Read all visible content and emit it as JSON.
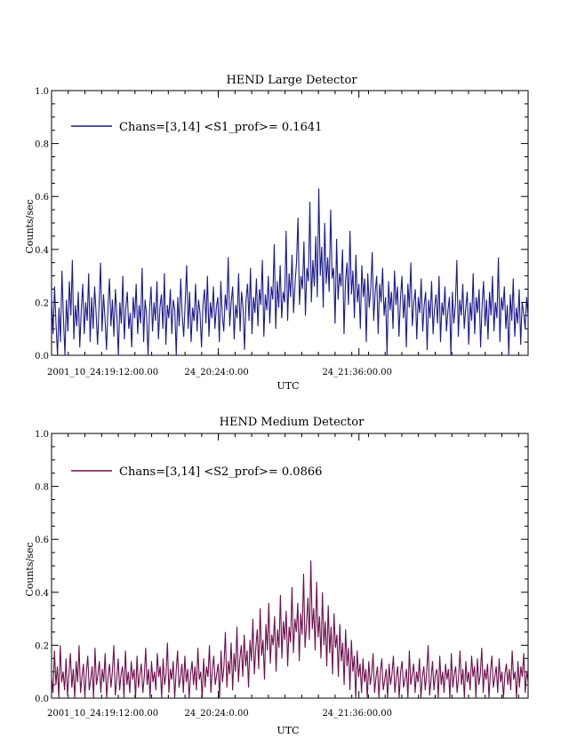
{
  "chart_data": [
    {
      "type": "line",
      "title": "HEND Large Detector",
      "xlabel": "UTC",
      "ylabel": "Counts/sec",
      "ylim": [
        0,
        1.0
      ],
      "yticks": [
        "0.0",
        "0.2",
        "0.4",
        "0.6",
        "0.8",
        "1.0"
      ],
      "xticks": [
        "2001_10_24:19:12:00.00",
        "24_20:24:0.00",
        "24_21:36:00.00"
      ],
      "legend": "Chans=[3,14] <S1_prof>= 0.1641",
      "color": "#1a1a8c",
      "series": [
        {
          "values": [
            0.22,
            0.08,
            0.26,
            0.12,
            0.0,
            0.18,
            0.05,
            0.32,
            0.14,
            0.0,
            0.21,
            0.09,
            0.28,
            0.15,
            0.36,
            0.06,
            0.19,
            0.11,
            0.24,
            0.03,
            0.17,
            0.27,
            0.08,
            0.2,
            0.13,
            0.31,
            0.05,
            0.22,
            0.1,
            0.26,
            0.16,
            0.04,
            0.19,
            0.35,
            0.09,
            0.23,
            0.14,
            0.02,
            0.18,
            0.29,
            0.11,
            0.21,
            0.07,
            0.25,
            0.15,
            0.0,
            0.2,
            0.12,
            0.3,
            0.06,
            0.18,
            0.24,
            0.1,
            0.16,
            0.03,
            0.22,
            0.14,
            0.27,
            0.08,
            0.19,
            0.12,
            0.33,
            0.05,
            0.21,
            0.15,
            0.0,
            0.17,
            0.26,
            0.09,
            0.2,
            0.13,
            0.28,
            0.06,
            0.18,
            0.23,
            0.1,
            0.31,
            0.04,
            0.19,
            0.14,
            0.25,
            0.08,
            0.21,
            0.17,
            0.0,
            0.22,
            0.11,
            0.29,
            0.15,
            0.07,
            0.2,
            0.34,
            0.1,
            0.24,
            0.05,
            0.18,
            0.13,
            0.27,
            0.09,
            0.21,
            0.16,
            0.03,
            0.19,
            0.25,
            0.12,
            0.3,
            0.07,
            0.2,
            0.14,
            0.26,
            0.1,
            0.18,
            0.22,
            0.05,
            0.28,
            0.15,
            0.09,
            0.23,
            0.17,
            0.37,
            0.11,
            0.2,
            0.26,
            0.06,
            0.19,
            0.14,
            0.31,
            0.09,
            0.24,
            0.18,
            0.02,
            0.21,
            0.27,
            0.13,
            0.33,
            0.08,
            0.22,
            0.16,
            0.29,
            0.11,
            0.25,
            0.19,
            0.36,
            0.07,
            0.23,
            0.17,
            0.3,
            0.12,
            0.26,
            0.21,
            0.42,
            0.1,
            0.28,
            0.18,
            0.34,
            0.14,
            0.24,
            0.2,
            0.47,
            0.13,
            0.31,
            0.22,
            0.38,
            0.16,
            0.27,
            0.35,
            0.52,
            0.19,
            0.3,
            0.25,
            0.43,
            0.15,
            0.33,
            0.28,
            0.58,
            0.2,
            0.36,
            0.26,
            0.45,
            0.22,
            0.63,
            0.3,
            0.41,
            0.18,
            0.5,
            0.27,
            0.37,
            0.24,
            0.55,
            0.29,
            0.33,
            0.12,
            0.44,
            0.21,
            0.31,
            0.26,
            0.4,
            0.08,
            0.28,
            0.35,
            0.19,
            0.47,
            0.23,
            0.32,
            0.14,
            0.38,
            0.2,
            0.27,
            0.1,
            0.34,
            0.22,
            0.29,
            0.05,
            0.31,
            0.18,
            0.25,
            0.39,
            0.13,
            0.24,
            0.3,
            0.08,
            0.27,
            0.2,
            0.33,
            0.15,
            0.22,
            0.0,
            0.28,
            0.17,
            0.24,
            0.1,
            0.32,
            0.19,
            0.26,
            0.07,
            0.21,
            0.3,
            0.14,
            0.23,
            0.03,
            0.27,
            0.18,
            0.35,
            0.11,
            0.2,
            0.25,
            0.06,
            0.22,
            0.16,
            0.29,
            0.09,
            0.19,
            0.24,
            0.02,
            0.21,
            0.14,
            0.28,
            0.08,
            0.18,
            0.23,
            0.12,
            0.3,
            0.05,
            0.2,
            0.15,
            0.26,
            0.09,
            0.17,
            0.22,
            0.0,
            0.24,
            0.12,
            0.19,
            0.36,
            0.07,
            0.21,
            0.15,
            0.27,
            0.1,
            0.18,
            0.24,
            0.04,
            0.2,
            0.13,
            0.31,
            0.08,
            0.22,
            0.16,
            0.25,
            0.03,
            0.19,
            0.28,
            0.11,
            0.21,
            0.06,
            0.24,
            0.15,
            0.3,
            0.09,
            0.2,
            0.14,
            0.37,
            0.05,
            0.22,
            0.17,
            0.26,
            0.1,
            0.19,
            0.0,
            0.23,
            0.13,
            0.29,
            0.07,
            0.18,
            0.12,
            0.25,
            0.04,
            0.2,
            0.16,
            0.1,
            0.22,
            0.14
          ]
        }
      ]
    },
    {
      "type": "line",
      "title": "HEND Medium Detector",
      "xlabel": "UTC",
      "ylabel": "Counts/sec",
      "ylim": [
        0,
        1.0
      ],
      "yticks": [
        "0.0",
        "0.2",
        "0.4",
        "0.6",
        "0.8",
        "1.0"
      ],
      "xticks": [
        "2001_10_24:19:12:00.00",
        "24_20:24:0.00",
        "24_21:36:00.00"
      ],
      "legend": "Chans=[3,14] <S2_prof>= 0.0866",
      "color": "#6e0f4c",
      "series": [
        {
          "values": [
            0.08,
            0.02,
            0.18,
            0.05,
            0.12,
            0.0,
            0.2,
            0.06,
            0.1,
            0.03,
            0.15,
            0.01,
            0.09,
            0.17,
            0.04,
            0.11,
            0.0,
            0.14,
            0.06,
            0.2,
            0.02,
            0.08,
            0.13,
            0.0,
            0.1,
            0.16,
            0.03,
            0.07,
            0.12,
            0.0,
            0.19,
            0.05,
            0.09,
            0.14,
            0.02,
            0.11,
            0.06,
            0.17,
            0.0,
            0.08,
            0.13,
            0.04,
            0.1,
            0.2,
            0.01,
            0.07,
            0.15,
            0.03,
            0.09,
            0.12,
            0.0,
            0.18,
            0.05,
            0.1,
            0.02,
            0.14,
            0.07,
            0.11,
            0.0,
            0.16,
            0.04,
            0.09,
            0.13,
            0.02,
            0.08,
            0.19,
            0.05,
            0.11,
            0.0,
            0.14,
            0.06,
            0.1,
            0.03,
            0.17,
            0.08,
            0.12,
            0.0,
            0.15,
            0.05,
            0.09,
            0.21,
            0.02,
            0.11,
            0.07,
            0.14,
            0.0,
            0.1,
            0.18,
            0.04,
            0.08,
            0.13,
            0.02,
            0.16,
            0.06,
            0.11,
            0.0,
            0.09,
            0.14,
            0.05,
            0.12,
            0.03,
            0.19,
            0.07,
            0.1,
            0.0,
            0.15,
            0.04,
            0.12,
            0.08,
            0.2,
            0.02,
            0.11,
            0.16,
            0.05,
            0.09,
            0.13,
            0.0,
            0.18,
            0.06,
            0.12,
            0.25,
            0.04,
            0.14,
            0.09,
            0.21,
            0.03,
            0.17,
            0.1,
            0.27,
            0.06,
            0.15,
            0.2,
            0.08,
            0.24,
            0.12,
            0.18,
            0.04,
            0.22,
            0.14,
            0.3,
            0.09,
            0.19,
            0.26,
            0.11,
            0.34,
            0.16,
            0.22,
            0.07,
            0.28,
            0.18,
            0.36,
            0.13,
            0.24,
            0.2,
            0.31,
            0.1,
            0.26,
            0.19,
            0.39,
            0.15,
            0.29,
            0.22,
            0.33,
            0.12,
            0.27,
            0.21,
            0.42,
            0.17,
            0.3,
            0.25,
            0.36,
            0.14,
            0.32,
            0.24,
            0.47,
            0.19,
            0.28,
            0.38,
            0.22,
            0.52,
            0.26,
            0.34,
            0.18,
            0.44,
            0.23,
            0.31,
            0.15,
            0.4,
            0.2,
            0.29,
            0.12,
            0.35,
            0.17,
            0.27,
            0.09,
            0.32,
            0.19,
            0.24,
            0.08,
            0.28,
            0.14,
            0.21,
            0.05,
            0.26,
            0.12,
            0.19,
            0.03,
            0.22,
            0.1,
            0.16,
            0.0,
            0.18,
            0.08,
            0.13,
            0.02,
            0.15,
            0.06,
            0.11,
            0.0,
            0.14,
            0.05,
            0.09,
            0.17,
            0.02,
            0.08,
            0.12,
            0.0,
            0.1,
            0.15,
            0.03,
            0.07,
            0.11,
            0.0,
            0.13,
            0.05,
            0.09,
            0.16,
            0.02,
            0.08,
            0.12,
            0.0,
            0.1,
            0.14,
            0.04,
            0.07,
            0.11,
            0.0,
            0.18,
            0.05,
            0.09,
            0.13,
            0.02,
            0.1,
            0.06,
            0.15,
            0.0,
            0.08,
            0.12,
            0.03,
            0.1,
            0.2,
            0.01,
            0.07,
            0.14,
            0.03,
            0.09,
            0.11,
            0.0,
            0.16,
            0.05,
            0.1,
            0.02,
            0.13,
            0.07,
            0.11,
            0.0,
            0.17,
            0.04,
            0.09,
            0.12,
            0.02,
            0.08,
            0.18,
            0.05,
            0.11,
            0.0,
            0.14,
            0.06,
            0.1,
            0.03,
            0.16,
            0.08,
            0.12,
            0.0,
            0.15,
            0.05,
            0.09,
            0.19,
            0.02,
            0.11,
            0.07,
            0.13,
            0.0,
            0.1,
            0.16,
            0.04,
            0.08,
            0.12,
            0.02,
            0.15,
            0.06,
            0.1,
            0.0,
            0.09,
            0.13,
            0.05,
            0.11,
            0.03,
            0.18,
            0.07,
            0.1,
            0.0,
            0.14,
            0.04,
            0.12,
            0.08,
            0.17,
            0.02,
            0.1,
            0.06
          ]
        }
      ]
    }
  ]
}
